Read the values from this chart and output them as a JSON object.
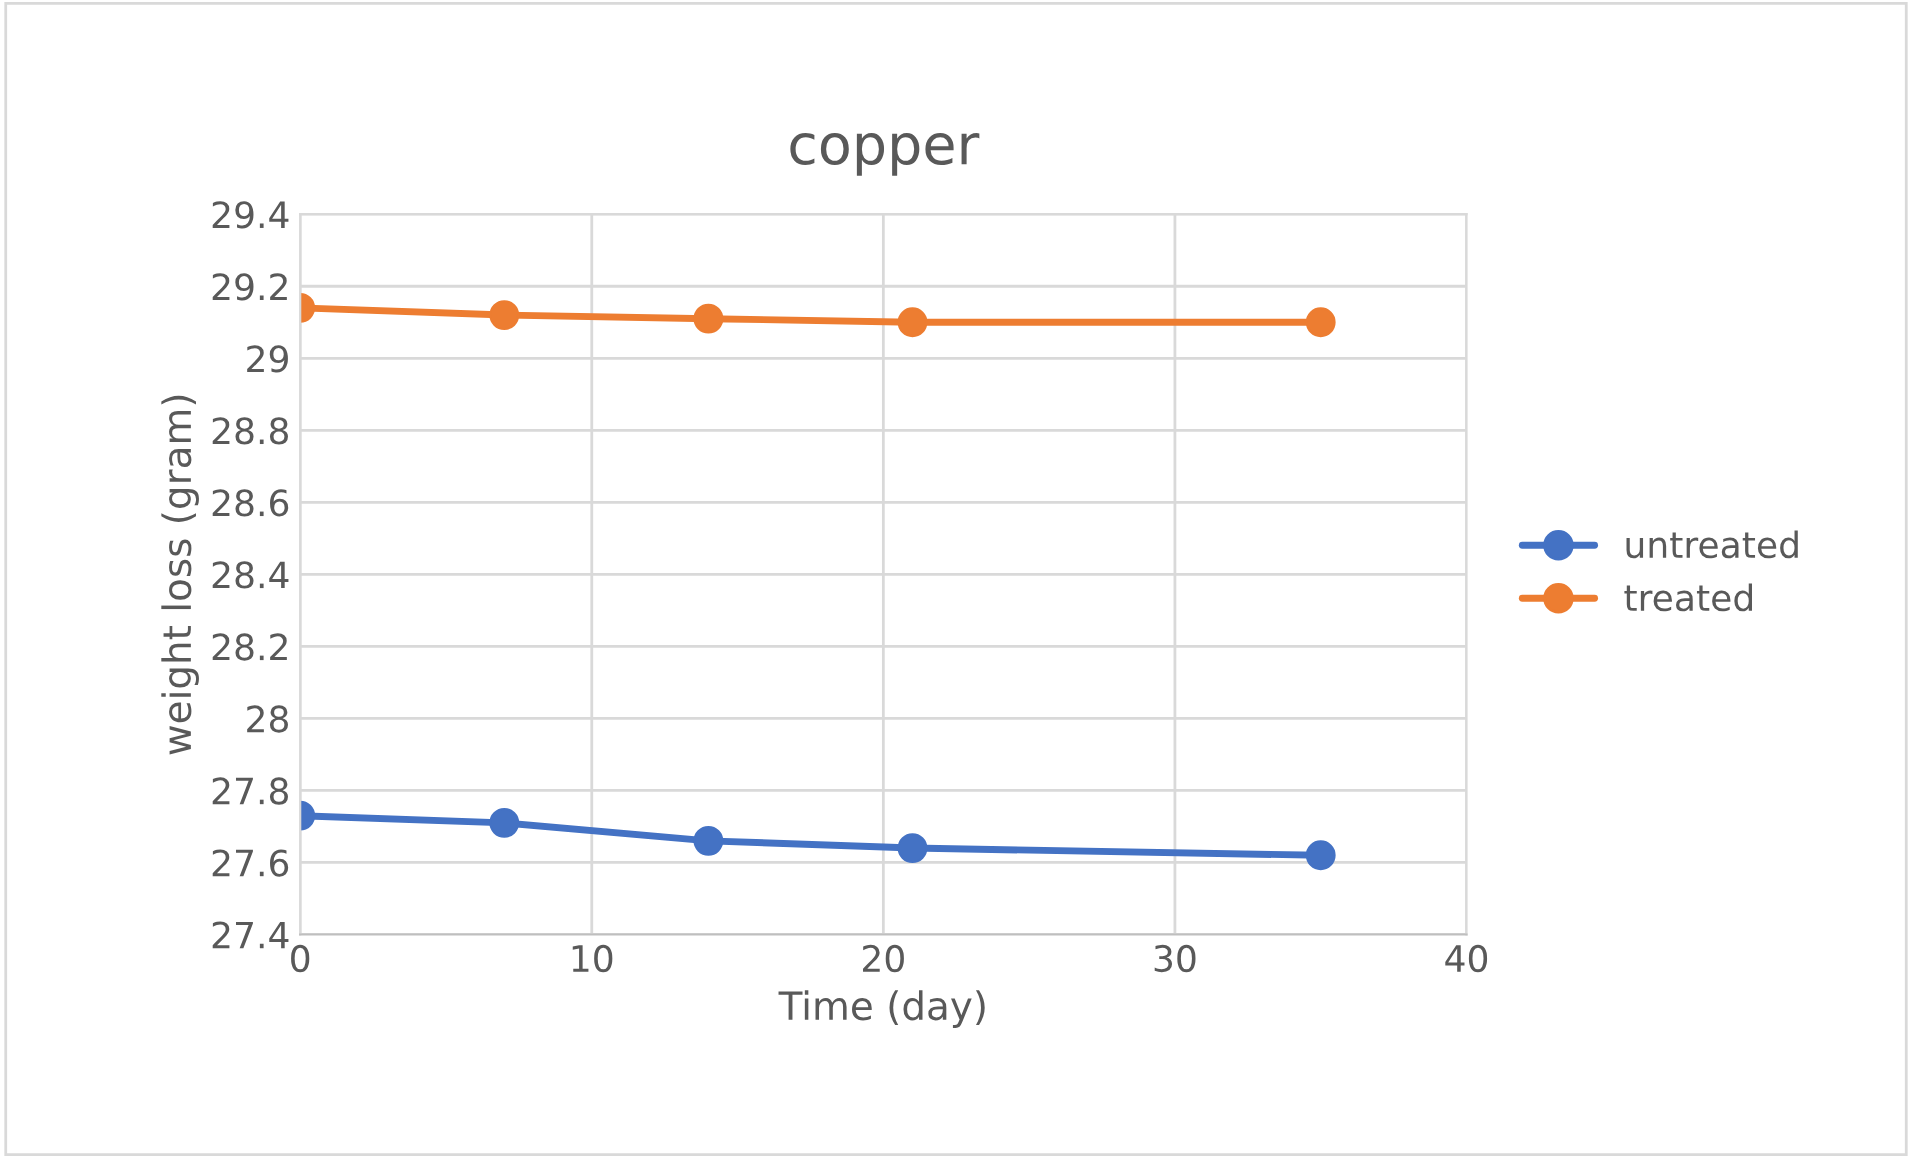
{
  "chart_data": {
    "type": "line",
    "title": "copper",
    "xlabel": "Time (day)",
    "ylabel": "weight loss (gram)",
    "x": [
      0,
      7,
      14,
      21,
      35
    ],
    "series": [
      {
        "name": "untreated",
        "color": "#4472c4",
        "values": [
          27.73,
          27.71,
          27.66,
          27.64,
          27.62
        ]
      },
      {
        "name": "treated",
        "color": "#ed7d31",
        "values": [
          29.14,
          29.12,
          29.11,
          29.1,
          29.1
        ]
      }
    ],
    "xlim": [
      0,
      40
    ],
    "xticks": [
      0,
      10,
      20,
      30,
      40
    ],
    "ylim": [
      27.4,
      29.4
    ],
    "yticks": [
      27.4,
      27.6,
      27.8,
      28,
      28.2,
      28.4,
      28.6,
      28.8,
      29,
      29.2,
      29.4
    ],
    "grid": true,
    "legend": "right",
    "marker": "circle",
    "line_style": "solid"
  }
}
